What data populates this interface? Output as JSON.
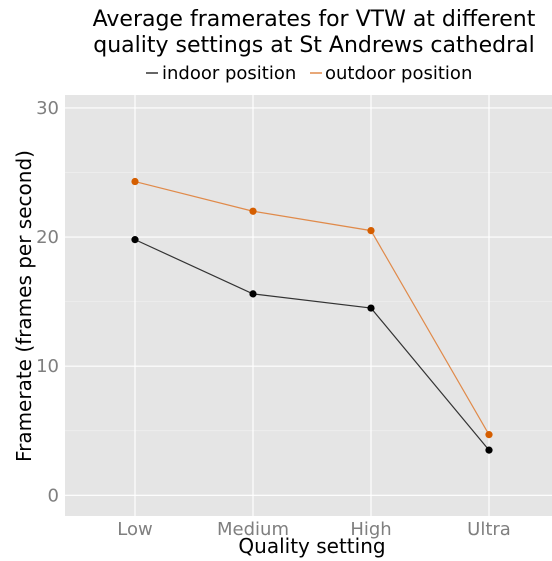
{
  "chart_data": {
    "type": "line",
    "title": "Average framerates for VTW at different quality settings at St Andrews cathedral",
    "title_lines": [
      "Average framerates for VTW at different",
      "quality settings at St Andrews cathedral"
    ],
    "xlabel": "Quality setting",
    "ylabel": "Framerate (frames per second)",
    "categories": [
      "Low",
      "Medium",
      "High",
      "Ultra"
    ],
    "ylim": [
      -1.6,
      31
    ],
    "yticks": [
      0,
      10,
      20,
      30
    ],
    "grid": true,
    "legend_position": "top",
    "series": [
      {
        "name": "indoor position",
        "color": "#000000",
        "line_color": "#333333",
        "values": [
          19.8,
          15.6,
          14.5,
          3.5
        ]
      },
      {
        "name": "outdoor position",
        "color": "#d55e00",
        "line_color": "#e08a4a",
        "values": [
          24.3,
          22.0,
          20.5,
          4.7
        ]
      }
    ]
  }
}
